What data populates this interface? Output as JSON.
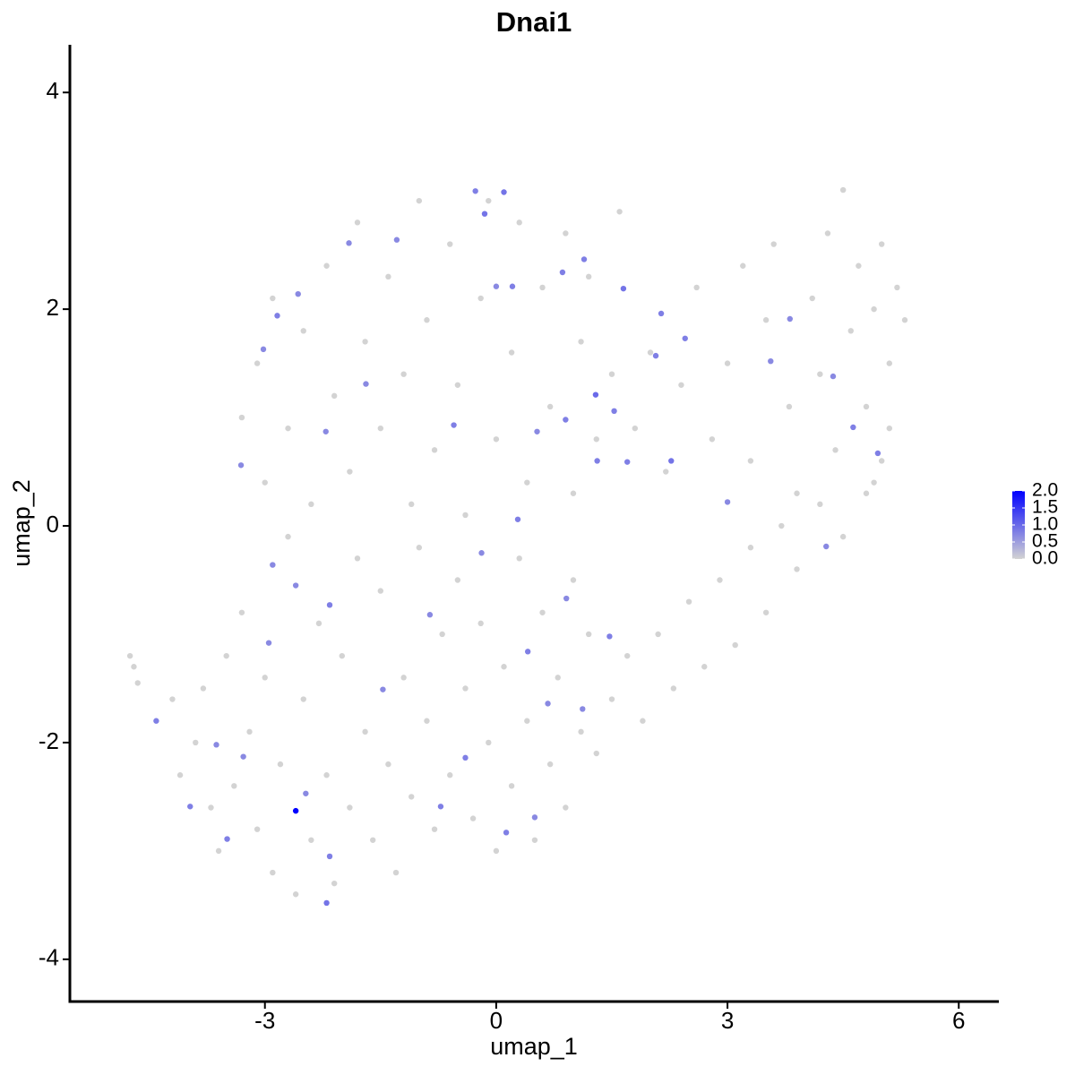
{
  "chart_data": {
    "type": "scatter",
    "title": "Dnai1",
    "x_label": "umap_1",
    "y_label": "umap_2",
    "xlim": [
      -5.53,
      6.52
    ],
    "ylim": [
      -4.39,
      4.44
    ],
    "xticks": [
      -3,
      0,
      3,
      6
    ],
    "yticks": [
      -4,
      -2,
      0,
      2,
      4
    ],
    "colorbar": {
      "lim": [
        0,
        2
      ],
      "ticks": [
        {
          "value": 0,
          "label": "0.0"
        },
        0.5,
        {
          "value": 1,
          "label": "1.0"
        },
        1.5,
        {
          "value": 2,
          "label": "2.0"
        }
      ],
      "low_color": "#d3d3d3",
      "high_color": "#0000ff"
    },
    "series": [
      {
        "x": [
          -4.75,
          -4.7,
          -4.65,
          -4.2,
          -4.1,
          -3.9,
          -3.8,
          -3.7,
          -3.6,
          -3.5,
          -3.4,
          -3.3,
          -3.2,
          -3.1,
          -3.0,
          -2.9,
          -2.8,
          -2.7,
          -2.6,
          -2.5,
          -2.4,
          -2.3,
          -2.2,
          -2.1,
          -2.0,
          -1.9,
          -1.8,
          -1.7,
          -1.6,
          -1.5,
          -1.4,
          -1.3,
          -1.2,
          -1.1,
          -1.0,
          -0.9,
          -0.8,
          -0.7,
          -0.6,
          -0.5,
          -0.4,
          -0.3,
          -0.2,
          -0.1,
          0.0,
          0.1,
          0.2,
          0.3,
          0.4,
          0.5,
          0.6,
          0.7,
          0.8,
          0.9,
          1.0,
          1.1,
          1.2,
          1.3,
          1.5,
          1.7,
          1.9,
          2.1,
          2.3,
          2.5,
          2.7,
          2.9,
          3.1,
          3.3,
          3.5,
          3.7,
          3.9,
          4.2,
          4.5,
          4.8,
          5.0,
          -3.3,
          -3.1,
          -3.0,
          -2.9,
          -2.7,
          -2.5,
          -2.4,
          -2.2,
          -2.1,
          -1.9,
          -1.8,
          -1.7,
          -1.5,
          -1.4,
          -1.2,
          -1.1,
          -1.0,
          -0.9,
          -0.8,
          -0.6,
          -0.5,
          -0.4,
          -0.2,
          -0.1,
          0.0,
          0.2,
          0.3,
          0.4,
          0.6,
          0.7,
          0.9,
          1.0,
          1.1,
          1.2,
          1.3,
          1.5,
          1.6,
          1.8,
          2.0,
          2.2,
          2.4,
          2.6,
          2.8,
          3.0,
          3.2,
          3.3,
          3.5,
          3.6,
          3.8,
          3.9,
          4.1,
          4.2,
          4.3,
          4.4,
          4.5,
          4.6,
          4.7,
          4.8,
          4.9,
          5.0,
          5.1,
          5.2,
          5.3,
          5.1,
          4.9,
          -2.6,
          0.1,
          -0.27,
          -0.15,
          0.21,
          0.0,
          0.86,
          1.65,
          1.14,
          -1.29,
          -1.91,
          -2.84,
          -2.57,
          -3.02,
          -1.69,
          -2.21,
          -3.31,
          -0.55,
          1.29,
          1.53,
          0.53,
          0.9,
          1.31,
          1.7,
          2.27,
          2.07,
          2.45,
          2.14,
          3.0,
          3.56,
          3.81,
          4.37,
          4.63,
          4.95,
          4.28,
          0.28,
          -0.19,
          0.91,
          -0.86,
          0.41,
          1.47,
          0.67,
          1.12,
          -0.4,
          -0.72,
          0.13,
          0.5,
          -4.41,
          -3.97,
          -3.49,
          -3.28,
          -3.63,
          -2.47,
          -2.2,
          -2.16,
          -2.95,
          -2.6,
          -1.47,
          -2.16,
          -2.9
        ],
        "values": [
          -1.2,
          -1.3,
          -1.45,
          -1.6,
          -2.3,
          -2.0,
          -1.5,
          -2.6,
          -3.0,
          -1.2,
          -2.4,
          -0.8,
          -1.9,
          -2.8,
          -1.4,
          -3.2,
          -2.2,
          -0.1,
          -3.4,
          -1.6,
          -2.9,
          -0.9,
          -2.3,
          -3.3,
          -1.2,
          -2.6,
          -0.3,
          -1.9,
          -2.9,
          -0.6,
          -2.2,
          -3.2,
          -1.4,
          -2.5,
          -0.2,
          -1.8,
          -2.8,
          -1.0,
          -2.3,
          -0.5,
          -1.5,
          -2.7,
          -0.9,
          -2.0,
          -3.0,
          -1.3,
          -2.4,
          -0.3,
          -1.8,
          -2.9,
          -0.8,
          -2.2,
          -1.4,
          -2.6,
          -0.5,
          -1.9,
          -1.0,
          -2.1,
          -1.6,
          -1.2,
          -1.8,
          -1.0,
          -1.5,
          -0.7,
          -1.3,
          -0.5,
          -1.1,
          -0.2,
          -0.8,
          0.0,
          -0.4,
          0.2,
          -0.1,
          0.3,
          0.6,
          1.0,
          1.5,
          0.4,
          2.1,
          0.9,
          1.8,
          0.2,
          2.4,
          1.2,
          0.5,
          2.8,
          1.7,
          0.9,
          2.3,
          1.4,
          0.2,
          3.0,
          1.9,
          0.7,
          2.6,
          1.3,
          0.1,
          2.1,
          3.0,
          0.8,
          1.6,
          2.8,
          0.4,
          2.2,
          1.1,
          2.7,
          0.3,
          1.7,
          2.3,
          0.8,
          1.4,
          2.9,
          0.9,
          1.6,
          0.5,
          1.3,
          2.2,
          0.8,
          1.5,
          2.4,
          0.6,
          1.9,
          2.6,
          1.1,
          0.3,
          2.1,
          1.4,
          2.7,
          0.7,
          3.1,
          1.8,
          2.4,
          1.1,
          2.0,
          2.6,
          1.5,
          2.2,
          1.9,
          0.9,
          0.4,
          -2.63,
          3.08,
          3.09,
          2.88,
          2.21,
          2.21,
          2.34,
          2.19,
          2.46,
          2.64,
          2.61,
          1.94,
          2.14,
          1.63,
          1.31,
          0.87,
          0.56,
          0.93,
          1.21,
          1.06,
          0.87,
          0.98,
          0.6,
          0.59,
          0.6,
          1.57,
          1.73,
          1.96,
          0.22,
          1.52,
          1.91,
          1.38,
          0.91,
          0.67,
          -0.19,
          0.06,
          -0.25,
          -0.67,
          -0.82,
          -1.16,
          -1.02,
          -1.64,
          -1.69,
          -2.14,
          -2.59,
          -2.83,
          -2.69,
          -1.8,
          -2.59,
          -2.89,
          -2.13,
          -2.02,
          -2.47,
          -3.48,
          -3.05,
          -1.08,
          -0.55,
          -1.51,
          -0.73,
          -0.36
        ],
        "expression": [
          0,
          0,
          0,
          0,
          0,
          0,
          0,
          0,
          0,
          0,
          0,
          0,
          0,
          0,
          0,
          0,
          0,
          0,
          0,
          0,
          0,
          0,
          0,
          0,
          0,
          0,
          0,
          0,
          0,
          0,
          0,
          0,
          0,
          0,
          0,
          0,
          0,
          0,
          0,
          0,
          0,
          0,
          0,
          0,
          0,
          0,
          0,
          0,
          0,
          0,
          0,
          0,
          0,
          0,
          0,
          0,
          0,
          0,
          0,
          0,
          0,
          0,
          0,
          0,
          0,
          0,
          0,
          0,
          0,
          0,
          0,
          0,
          0,
          0,
          0,
          0,
          0,
          0,
          0,
          0,
          0,
          0,
          0,
          0,
          0,
          0,
          0,
          0,
          0,
          0,
          0,
          0,
          0,
          0,
          0,
          0,
          0,
          0,
          0,
          0,
          0,
          0,
          0,
          0,
          0,
          0,
          0,
          0,
          0,
          0,
          0,
          0,
          0,
          0,
          0,
          0,
          0,
          0,
          0,
          0,
          0,
          0,
          0,
          0,
          0,
          0,
          0,
          0,
          0,
          0,
          0,
          0,
          0,
          0,
          0,
          0,
          0,
          0,
          0,
          0,
          2.0,
          0.9,
          0.8,
          0.9,
          0.8,
          0.7,
          0.8,
          0.9,
          0.8,
          0.7,
          0.7,
          0.8,
          0.7,
          0.7,
          0.7,
          0.7,
          0.7,
          0.8,
          1.0,
          0.8,
          0.7,
          0.8,
          0.8,
          0.8,
          0.9,
          0.8,
          0.8,
          0.8,
          0.7,
          0.7,
          0.7,
          0.7,
          0.8,
          0.8,
          0.7,
          0.8,
          0.7,
          0.7,
          0.7,
          0.8,
          0.8,
          0.7,
          0.7,
          0.8,
          0.8,
          0.8,
          0.7,
          0.8,
          0.8,
          0.8,
          0.7,
          0.7,
          0.7,
          0.9,
          0.8,
          0.7,
          0.7,
          0.7,
          0.8,
          0.7
        ]
      }
    ]
  }
}
